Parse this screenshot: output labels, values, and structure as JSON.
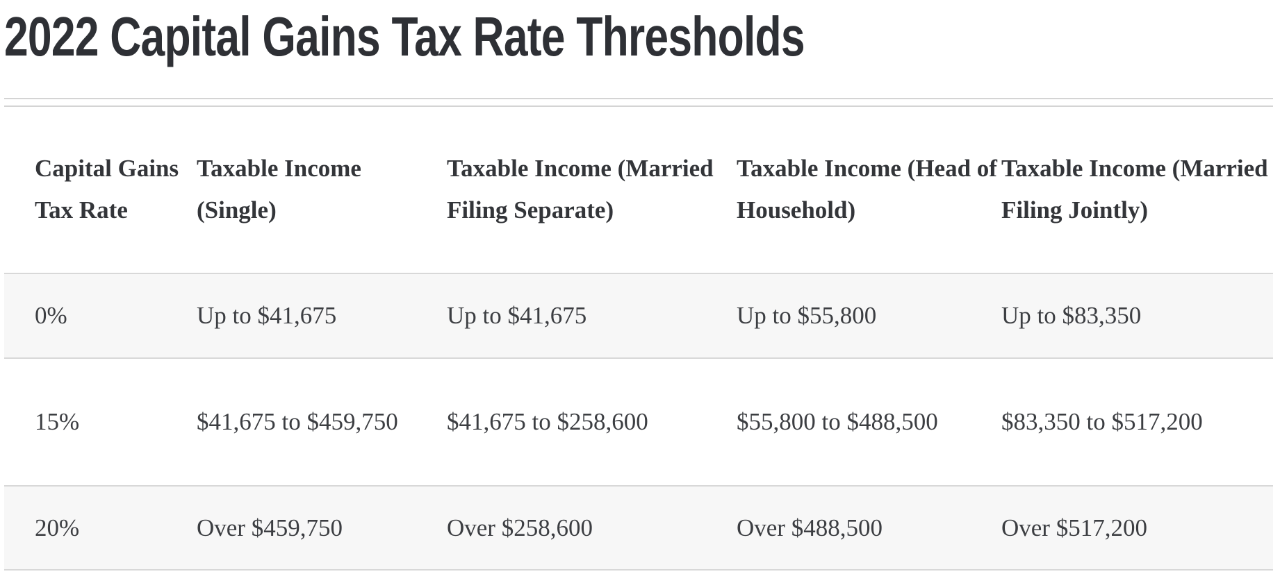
{
  "title": "2022 Capital Gains Tax Rate Thresholds",
  "table": {
    "headers": [
      "Capital Gains Tax Rate",
      "Taxable Income (Single)",
      "Taxable Income (Married Filing Separate)",
      "Taxable Income (Head of Household)",
      "Taxable Income (Married Filing Jointly)"
    ],
    "rows": [
      [
        "0%",
        "Up to $41,675",
        "Up to $41,675",
        "Up to $55,800",
        "Up to $83,350"
      ],
      [
        "15%",
        "$41,675 to $459,750",
        "$41,675 to $258,600",
        "$55,800 to $488,500",
        "$83,350 to $517,200"
      ],
      [
        "20%",
        "Over $459,750",
        "Over $258,600",
        "Over $488,500",
        "Over $517,200"
      ]
    ]
  }
}
